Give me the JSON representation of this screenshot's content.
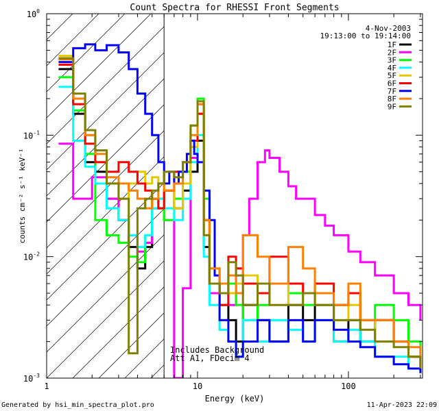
{
  "chart_data": {
    "type": "line",
    "title": "Count Spectra for RHESSI Front Segments",
    "xlabel": "Energy (keV)",
    "ylabel": "counts cm⁻² s⁻¹ keV⁻¹",
    "x_scale": "log",
    "y_scale": "log",
    "xlim": [
      1,
      310
    ],
    "ylim": [
      0.001,
      1.0
    ],
    "x_ticks": [
      {
        "value": 1,
        "label": "1"
      },
      {
        "value": 10,
        "label": "10"
      },
      {
        "value": 100,
        "label": "100"
      }
    ],
    "y_ticks": [
      {
        "value": 0.001,
        "base": "10",
        "exp": "-3"
      },
      {
        "value": 0.01,
        "base": "10",
        "exp": "-2"
      },
      {
        "value": 0.1,
        "base": "10",
        "exp": "-1"
      },
      {
        "value": 1,
        "base": "10",
        "exp": "0"
      }
    ],
    "date": "4-Nov-2003",
    "time_range": "19:13:00 to 19:14:00",
    "annotation_lines": [
      "Includes Background",
      "Att A1, FDecim 4"
    ],
    "hatched_region_x": [
      1,
      6
    ],
    "legend_position": "top-right",
    "grid": false,
    "series": [
      {
        "name": "1F",
        "color": "#000000",
        "x": [
          1.2,
          1.5,
          1.8,
          2.1,
          2.5,
          3.0,
          3.5,
          4.0,
          4.5,
          5.0,
          5.5,
          6.0,
          7.0,
          8.0,
          9.0,
          10.0,
          11.0,
          12.0,
          14.0,
          16.0,
          18.0,
          20.0,
          25.0,
          30.0,
          40.0,
          50.0,
          60.0,
          80.0,
          100.0,
          120.0,
          150.0,
          200.0,
          250.0,
          300.0
        ],
        "y": [
          0.35,
          0.15,
          0.06,
          0.05,
          0.03,
          0.02,
          0.012,
          0.008,
          0.012,
          0.03,
          0.025,
          0.035,
          0.025,
          0.035,
          0.05,
          0.09,
          0.012,
          0.006,
          0.004,
          0.003,
          0.002,
          0.004,
          0.003,
          0.002,
          0.004,
          0.003,
          0.004,
          0.002,
          0.003,
          0.002,
          0.003,
          0.002,
          0.0015,
          0.0012
        ]
      },
      {
        "name": "2F",
        "color": "#ff00ff",
        "x": [
          1.2,
          1.5,
          1.8,
          2.0,
          2.5,
          3.0,
          3.5,
          4.0,
          4.5,
          5.0,
          5.5,
          6.0,
          7.0,
          8.0,
          9.0,
          10.0,
          11.0,
          12.0,
          14.0,
          16.0,
          18.0,
          20.0,
          22.0,
          25.0,
          28.0,
          30.0,
          35.0,
          40.0,
          45.0,
          50.0,
          60.0,
          70.0,
          80.0,
          100.0,
          120.0,
          150.0,
          200.0,
          250.0,
          300.0
        ],
        "y": [
          0.085,
          0.03,
          0.03,
          0.045,
          0.03,
          0.02,
          0.015,
          0.011,
          0.013,
          0.025,
          0.03,
          0.02,
          0.001,
          0.0055,
          0.065,
          0.18,
          0.02,
          0.005,
          0.006,
          0.004,
          0.008,
          0.015,
          0.03,
          0.06,
          0.075,
          0.065,
          0.05,
          0.038,
          0.03,
          0.03,
          0.022,
          0.018,
          0.015,
          0.011,
          0.009,
          0.007,
          0.005,
          0.004,
          0.003
        ]
      },
      {
        "name": "3F",
        "color": "#00ff00",
        "x": [
          1.2,
          1.5,
          1.8,
          2.1,
          2.5,
          3.0,
          3.5,
          4.0,
          4.5,
          5.0,
          5.5,
          6.0,
          7.0,
          8.0,
          9.0,
          10.0,
          11.0,
          12.0,
          14.0,
          16.0,
          18.0,
          20.0,
          25.0,
          30.0,
          40.0,
          50.0,
          60.0,
          80.0,
          100.0,
          120.0,
          150.0,
          200.0,
          250.0,
          300.0
        ],
        "y": [
          0.3,
          0.16,
          0.07,
          0.02,
          0.015,
          0.013,
          0.01,
          0.009,
          0.015,
          0.03,
          0.04,
          0.02,
          0.03,
          0.05,
          0.12,
          0.2,
          0.03,
          0.008,
          0.004,
          0.006,
          0.004,
          0.003,
          0.004,
          0.006,
          0.005,
          0.004,
          0.006,
          0.004,
          0.005,
          0.003,
          0.004,
          0.003,
          0.002,
          0.0015
        ]
      },
      {
        "name": "4F",
        "color": "#00ffff",
        "x": [
          1.2,
          1.5,
          1.8,
          2.1,
          2.5,
          3.0,
          3.5,
          4.0,
          4.5,
          5.0,
          5.5,
          6.0,
          7.0,
          8.0,
          9.0,
          10.0,
          11.0,
          12.0,
          14.0,
          16.0,
          18.0,
          20.0,
          25.0,
          30.0,
          40.0,
          50.0,
          60.0,
          80.0,
          100.0,
          120.0,
          150.0,
          200.0,
          250.0,
          300.0
        ],
        "y": [
          0.25,
          0.09,
          0.055,
          0.04,
          0.025,
          0.02,
          0.015,
          0.012,
          0.015,
          0.025,
          0.03,
          0.025,
          0.02,
          0.03,
          0.06,
          0.1,
          0.01,
          0.004,
          0.0025,
          0.002,
          0.0015,
          0.003,
          0.002,
          0.003,
          0.0025,
          0.002,
          0.003,
          0.002,
          0.0025,
          0.002,
          0.0015,
          0.0015,
          0.0012,
          0.0011
        ]
      },
      {
        "name": "5F",
        "color": "#e5c800",
        "x": [
          1.2,
          1.5,
          1.8,
          2.1,
          2.5,
          3.0,
          3.5,
          4.0,
          4.5,
          5.0,
          5.5,
          6.0,
          7.0,
          8.0,
          9.0,
          10.0,
          11.0,
          12.0,
          14.0,
          16.0,
          18.0,
          20.0,
          25.0,
          30.0,
          40.0,
          50.0,
          60.0,
          80.0,
          100.0,
          120.0,
          150.0,
          200.0,
          250.0,
          300.0
        ],
        "y": [
          0.45,
          0.2,
          0.1,
          0.06,
          0.04,
          0.03,
          0.04,
          0.05,
          0.04,
          0.045,
          0.04,
          0.035,
          0.025,
          0.04,
          0.08,
          0.15,
          0.015,
          0.008,
          0.006,
          0.005,
          0.006,
          0.007,
          0.005,
          0.004,
          0.006,
          0.005,
          0.004,
          0.003,
          0.004,
          0.003,
          0.002,
          0.002,
          0.0015,
          0.0012
        ]
      },
      {
        "name": "6F",
        "color": "#ff0000",
        "x": [
          1.2,
          1.5,
          1.8,
          2.1,
          2.5,
          3.0,
          3.5,
          4.0,
          4.5,
          5.0,
          5.5,
          6.0,
          7.0,
          8.0,
          9.0,
          10.0,
          11.0,
          12.0,
          14.0,
          16.0,
          18.0,
          20.0,
          25.0,
          30.0,
          40.0,
          50.0,
          60.0,
          80.0,
          100.0,
          120.0,
          150.0,
          200.0,
          250.0,
          300.0
        ],
        "y": [
          0.38,
          0.18,
          0.085,
          0.06,
          0.05,
          0.06,
          0.05,
          0.04,
          0.035,
          0.03,
          0.025,
          0.035,
          0.05,
          0.06,
          0.09,
          0.15,
          0.02,
          0.006,
          0.004,
          0.01,
          0.008,
          0.006,
          0.005,
          0.01,
          0.006,
          0.005,
          0.006,
          0.004,
          0.005,
          0.003,
          0.003,
          0.002,
          0.0015,
          0.0012
        ]
      },
      {
        "name": "7F",
        "color": "#0000ff",
        "x": [
          1.2,
          1.5,
          1.8,
          2.1,
          2.5,
          3.0,
          3.5,
          4.0,
          4.5,
          5.0,
          5.5,
          6.0,
          6.5,
          7.0,
          7.5,
          8.0,
          8.5,
          9.0,
          9.5,
          10.0,
          11.0,
          12.0,
          13.0,
          14.0,
          16.0,
          18.0,
          20.0,
          25.0,
          30.0,
          40.0,
          50.0,
          60.0,
          80.0,
          100.0,
          120.0,
          150.0,
          200.0,
          250.0,
          300.0
        ],
        "y": [
          0.4,
          0.52,
          0.56,
          0.5,
          0.55,
          0.48,
          0.35,
          0.22,
          0.15,
          0.1,
          0.06,
          0.04,
          0.05,
          0.04,
          0.05,
          0.05,
          0.07,
          0.09,
          0.07,
          0.06,
          0.035,
          0.02,
          0.007,
          0.003,
          0.002,
          0.0015,
          0.002,
          0.003,
          0.002,
          0.003,
          0.002,
          0.003,
          0.0025,
          0.002,
          0.0018,
          0.0015,
          0.0013,
          0.0012,
          0.0011
        ]
      },
      {
        "name": "8F",
        "color": "#ff8000",
        "x": [
          1.2,
          1.5,
          1.8,
          2.1,
          2.5,
          3.0,
          3.5,
          4.0,
          4.5,
          5.0,
          5.5,
          6.0,
          7.0,
          8.0,
          9.0,
          10.0,
          11.0,
          12.0,
          14.0,
          16.0,
          18.0,
          20.0,
          25.0,
          30.0,
          40.0,
          50.0,
          60.0,
          80.0,
          100.0,
          120.0,
          150.0,
          200.0,
          250.0,
          300.0
        ],
        "y": [
          0.42,
          0.2,
          0.1,
          0.07,
          0.045,
          0.04,
          0.035,
          0.03,
          0.025,
          0.03,
          0.04,
          0.035,
          0.04,
          0.06,
          0.1,
          0.18,
          0.02,
          0.008,
          0.006,
          0.007,
          0.005,
          0.015,
          0.01,
          0.006,
          0.012,
          0.008,
          0.005,
          0.004,
          0.006,
          0.003,
          0.003,
          0.002,
          0.0018,
          0.0015
        ]
      },
      {
        "name": "9F",
        "color": "#808000",
        "x": [
          1.2,
          1.5,
          1.8,
          2.1,
          2.5,
          3.0,
          3.5,
          4.0,
          4.5,
          5.0,
          5.5,
          6.0,
          7.0,
          8.0,
          9.0,
          10.0,
          11.0,
          12.0,
          14.0,
          16.0,
          18.0,
          20.0,
          25.0,
          30.0,
          40.0,
          50.0,
          60.0,
          80.0,
          100.0,
          120.0,
          150.0,
          200.0,
          250.0,
          300.0
        ],
        "y": [
          0.43,
          0.22,
          0.11,
          0.075,
          0.04,
          0.03,
          0.0016,
          0.025,
          0.03,
          0.035,
          0.04,
          0.05,
          0.045,
          0.06,
          0.12,
          0.19,
          0.015,
          0.006,
          0.005,
          0.009,
          0.007,
          0.004,
          0.006,
          0.004,
          0.004,
          0.005,
          0.004,
          0.003,
          0.003,
          0.0025,
          0.002,
          0.0018,
          0.0015,
          0.0012
        ]
      }
    ]
  },
  "footer": {
    "generated_by": "Generated by hsi_min_spectra_plot.pro",
    "timestamp": "11-Apr-2023 22:09"
  }
}
